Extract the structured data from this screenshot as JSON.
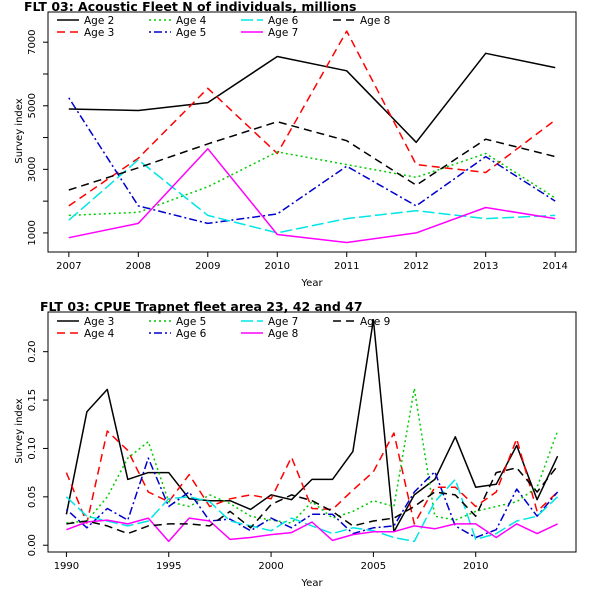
{
  "chart_data": [
    {
      "type": "line",
      "title": "FLT 03: Acoustic Fleet   N of individuals, millions",
      "xlabel": "Year",
      "ylabel": "Survey index",
      "x": [
        2007,
        2008,
        2009,
        2010,
        2011,
        2012,
        2013,
        2014
      ],
      "xticks": [
        "2007",
        "2008",
        "2009",
        "2010",
        "2011",
        "2012",
        "2013",
        "2014"
      ],
      "yticks": [
        "1000",
        "3000",
        "5000",
        "7000"
      ],
      "ytick_values": [
        1000,
        3000,
        5000,
        7000
      ],
      "xlim": [
        2006.7,
        2014.3
      ],
      "ylim": [
        400,
        7950
      ],
      "legend_position": "top-left",
      "series": [
        {
          "name": "Age 2",
          "color": "#000000",
          "dash": "solid",
          "values": [
            4900,
            4850,
            5100,
            6550,
            6100,
            3850,
            6650,
            6200
          ]
        },
        {
          "name": "Age 3",
          "color": "#ff0000",
          "dash": "dashed",
          "values": [
            1850,
            3350,
            5550,
            3500,
            7350,
            3150,
            2900,
            4550
          ]
        },
        {
          "name": "Age 4",
          "color": "#00cc00",
          "dash": "dotted",
          "values": [
            1550,
            1650,
            2450,
            3550,
            3150,
            2750,
            3500,
            2100
          ]
        },
        {
          "name": "Age 5",
          "color": "#0000cc",
          "dash": "dotdash",
          "values": [
            5250,
            1850,
            1300,
            1600,
            3100,
            1850,
            3400,
            2000
          ]
        },
        {
          "name": "Age 6",
          "color": "#00e5e5",
          "dash": "longdash",
          "values": [
            1400,
            3300,
            1550,
            1000,
            1450,
            1700,
            1450,
            1550
          ]
        },
        {
          "name": "Age 7",
          "color": "#ff00ff",
          "dash": "solid",
          "values": [
            850,
            1300,
            3650,
            950,
            700,
            1000,
            1800,
            1450
          ]
        },
        {
          "name": "Age 8",
          "color": "#000000",
          "dash": "dashed",
          "values": [
            2350,
            3050,
            3800,
            4500,
            3900,
            2500,
            3950,
            3400
          ]
        }
      ]
    },
    {
      "type": "line",
      "title": "FLT 03: CPUE Trapnet fleet area 23, 42 and 47",
      "xlabel": "Year",
      "ylabel": "Survey index",
      "x": [
        1990,
        1991,
        1992,
        1993,
        1994,
        1995,
        1996,
        1997,
        1998,
        1999,
        2000,
        2001,
        2002,
        2003,
        2004,
        2005,
        2006,
        2007,
        2008,
        2009,
        2010,
        2011,
        2012,
        2013,
        2014
      ],
      "xticks": [
        "1990",
        "1995",
        "2000",
        "2005",
        "2010"
      ],
      "xtick_values": [
        1990,
        1995,
        2000,
        2005,
        2010
      ],
      "yticks": [
        "0.00",
        "0.05",
        "0.10",
        "0.15",
        "0.20"
      ],
      "ytick_values": [
        0.0,
        0.05,
        0.1,
        0.15,
        0.2
      ],
      "xlim": [
        1989.1,
        2014.9
      ],
      "ylim": [
        -0.007,
        0.241
      ],
      "legend_position": "top-left",
      "series": [
        {
          "name": "Age 3",
          "color": "#000000",
          "dash": "solid",
          "values": [
            0.032,
            0.138,
            0.161,
            0.068,
            0.075,
            0.075,
            0.048,
            0.046,
            0.046,
            0.037,
            0.052,
            0.047,
            0.068,
            0.068,
            0.097,
            0.233,
            0.014,
            0.052,
            0.068,
            0.112,
            0.06,
            0.063,
            0.103,
            0.047,
            0.092
          ]
        },
        {
          "name": "Age 4",
          "color": "#ff0000",
          "dash": "dashed",
          "values": [
            0.075,
            0.023,
            0.118,
            0.098,
            0.055,
            0.045,
            0.073,
            0.04,
            0.048,
            0.052,
            0.048,
            0.091,
            0.038,
            0.037,
            0.057,
            0.076,
            0.116,
            0.022,
            0.06,
            0.06,
            0.04,
            0.055,
            0.11,
            0.035,
            0.055
          ]
        },
        {
          "name": "Age 5",
          "color": "#00cc00",
          "dash": "dotted",
          "values": [
            0.023,
            0.025,
            0.05,
            0.09,
            0.107,
            0.045,
            0.04,
            0.052,
            0.043,
            0.03,
            0.026,
            0.023,
            0.045,
            0.028,
            0.035,
            0.046,
            0.04,
            0.162,
            0.03,
            0.026,
            0.035,
            0.04,
            0.045,
            0.06,
            0.118
          ]
        },
        {
          "name": "Age 6",
          "color": "#0000cc",
          "dash": "dotdash",
          "values": [
            0.037,
            0.018,
            0.038,
            0.026,
            0.09,
            0.04,
            0.055,
            0.025,
            0.027,
            0.015,
            0.028,
            0.018,
            0.032,
            0.032,
            0.012,
            0.018,
            0.02,
            0.055,
            0.076,
            0.02,
            0.008,
            0.016,
            0.058,
            0.03,
            0.055
          ]
        },
        {
          "name": "Age 7",
          "color": "#00e5e5",
          "dash": "longdash",
          "values": [
            0.05,
            0.03,
            0.025,
            0.02,
            0.025,
            0.048,
            0.05,
            0.045,
            0.025,
            0.02,
            0.015,
            0.028,
            0.02,
            0.012,
            0.018,
            0.015,
            0.008,
            0.004,
            0.045,
            0.068,
            0.006,
            0.012,
            0.025,
            0.03,
            0.05
          ]
        },
        {
          "name": "Age 8",
          "color": "#ff00ff",
          "dash": "solid",
          "values": [
            0.016,
            0.024,
            0.026,
            0.022,
            0.028,
            0.004,
            0.028,
            0.025,
            0.006,
            0.008,
            0.011,
            0.013,
            0.024,
            0.005,
            0.011,
            0.014,
            0.014,
            0.02,
            0.017,
            0.022,
            0.022,
            0.008,
            0.022,
            0.012,
            0.022
          ]
        },
        {
          "name": "Age 9",
          "color": "#000000",
          "dash": "dashed",
          "values": [
            0.022,
            0.025,
            0.02,
            0.012,
            0.02,
            0.022,
            0.022,
            0.02,
            0.035,
            0.018,
            0.042,
            0.052,
            0.046,
            0.035,
            0.02,
            0.025,
            0.028,
            0.04,
            0.055,
            0.052,
            0.03,
            0.075,
            0.08,
            0.055,
            0.082
          ]
        }
      ]
    }
  ]
}
